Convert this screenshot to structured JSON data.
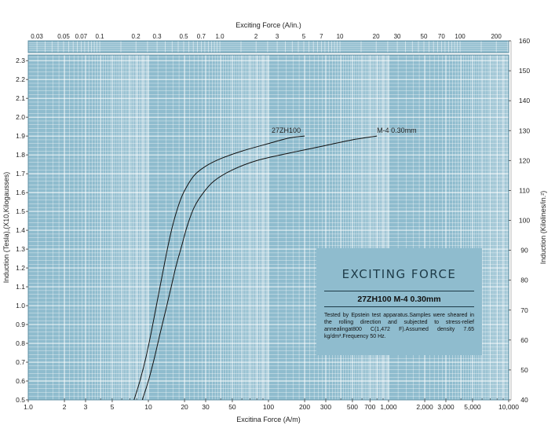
{
  "chart_data": {
    "type": "line",
    "x_scale": "log",
    "xlabel": "Excitina Force (A/m)",
    "x2label": "Exciting Force (A/in.)",
    "ylabel": "Induction (Tesla),(X10,Kilogausses)",
    "y2label": "Induction (Kilolines/in.²)",
    "xlim": [
      1,
      10000
    ],
    "ylim": [
      0.5,
      2.33
    ],
    "y2lim": [
      40,
      160
    ],
    "x_ticks": [
      {
        "v": 1,
        "t": "1.0"
      },
      {
        "v": 2,
        "t": "2"
      },
      {
        "v": 3,
        "t": "3"
      },
      {
        "v": 5,
        "t": "5"
      },
      {
        "v": 10,
        "t": "10"
      },
      {
        "v": 20,
        "t": "20"
      },
      {
        "v": 30,
        "t": "30"
      },
      {
        "v": 50,
        "t": "50"
      },
      {
        "v": 100,
        "t": "100"
      },
      {
        "v": 200,
        "t": "200"
      },
      {
        "v": 300,
        "t": "300"
      },
      {
        "v": 500,
        "t": "500"
      },
      {
        "v": 700,
        "t": "700"
      },
      {
        "v": 1000,
        "t": "1,000"
      },
      {
        "v": 2000,
        "t": "2,000"
      },
      {
        "v": 3000,
        "t": "3,000"
      },
      {
        "v": 5000,
        "t": "5,000"
      },
      {
        "v": 10000,
        "t": "10,000"
      }
    ],
    "x2_ticks": [
      {
        "v": 0.03,
        "t": "0.03"
      },
      {
        "v": 0.05,
        "t": "0.05"
      },
      {
        "v": 0.07,
        "t": "0.07"
      },
      {
        "v": 0.1,
        "t": "0.1"
      },
      {
        "v": 0.2,
        "t": "0.2"
      },
      {
        "v": 0.3,
        "t": "0.3"
      },
      {
        "v": 0.5,
        "t": "0.5"
      },
      {
        "v": 0.7,
        "t": "0.7"
      },
      {
        "v": 1,
        "t": "1.0"
      },
      {
        "v": 2,
        "t": "2"
      },
      {
        "v": 3,
        "t": "3"
      },
      {
        "v": 5,
        "t": "5"
      },
      {
        "v": 7,
        "t": "7"
      },
      {
        "v": 10,
        "t": "10"
      },
      {
        "v": 20,
        "t": "20"
      },
      {
        "v": 30,
        "t": "30"
      },
      {
        "v": 50,
        "t": "50"
      },
      {
        "v": 70,
        "t": "70"
      },
      {
        "v": 100,
        "t": "100"
      },
      {
        "v": 200,
        "t": "200"
      }
    ],
    "y_ticks": [
      "0.5",
      "0.6",
      "0.7",
      "0.8",
      "0.9",
      "1.0",
      "1.1",
      "1.2",
      "1.3",
      "1.4",
      "1.5",
      "1.6",
      "1.7",
      "1.8",
      "1.9",
      "2.0",
      "2.1",
      "2.2",
      "2.3"
    ],
    "y2_ticks": [
      "40",
      "50",
      "60",
      "70",
      "80",
      "90",
      "100",
      "110",
      "120",
      "130",
      "140",
      "150",
      "160"
    ],
    "grid": true,
    "series": [
      {
        "name": "27ZH100",
        "x": [
          7.6,
          8.5,
          9.5,
          10.5,
          11.5,
          12.5,
          13.5,
          14.5,
          16,
          18,
          20,
          24,
          30,
          40,
          60,
          100,
          150,
          200
        ],
        "y": [
          0.5,
          0.6,
          0.72,
          0.85,
          0.98,
          1.1,
          1.21,
          1.31,
          1.43,
          1.54,
          1.61,
          1.69,
          1.74,
          1.78,
          1.82,
          1.86,
          1.89,
          1.9
        ]
      },
      {
        "name": "M-4 0.30mm",
        "x": [
          8.9,
          10,
          11.2,
          12.5,
          14,
          15.5,
          17,
          19,
          21,
          24,
          28,
          35,
          50,
          80,
          150,
          300,
          500,
          800
        ],
        "y": [
          0.5,
          0.6,
          0.72,
          0.85,
          0.98,
          1.1,
          1.21,
          1.32,
          1.42,
          1.52,
          1.59,
          1.66,
          1.72,
          1.77,
          1.81,
          1.85,
          1.88,
          1.9
        ]
      }
    ],
    "annotations": [
      {
        "text": "27ZH100",
        "x": 200,
        "y": 1.9
      },
      {
        "text": "M-4  0.30mm",
        "x": 800,
        "y": 1.9
      }
    ]
  },
  "colors": {
    "background": "#8fbcce",
    "grid": "#ffffff",
    "curve": "#111111",
    "box": "#8fbcce"
  },
  "info_box": {
    "title": "EXCITING FORCE",
    "grade": "27ZH100  M-4  0.30mm",
    "note": "Tested by Epstein test apparatus.Samples were sheared in the rolling direction and subjected to stress-relief annealingat800 C(1,472 F).Assumed density 7.65 kg/dm³.Frequency 50 Hz."
  }
}
